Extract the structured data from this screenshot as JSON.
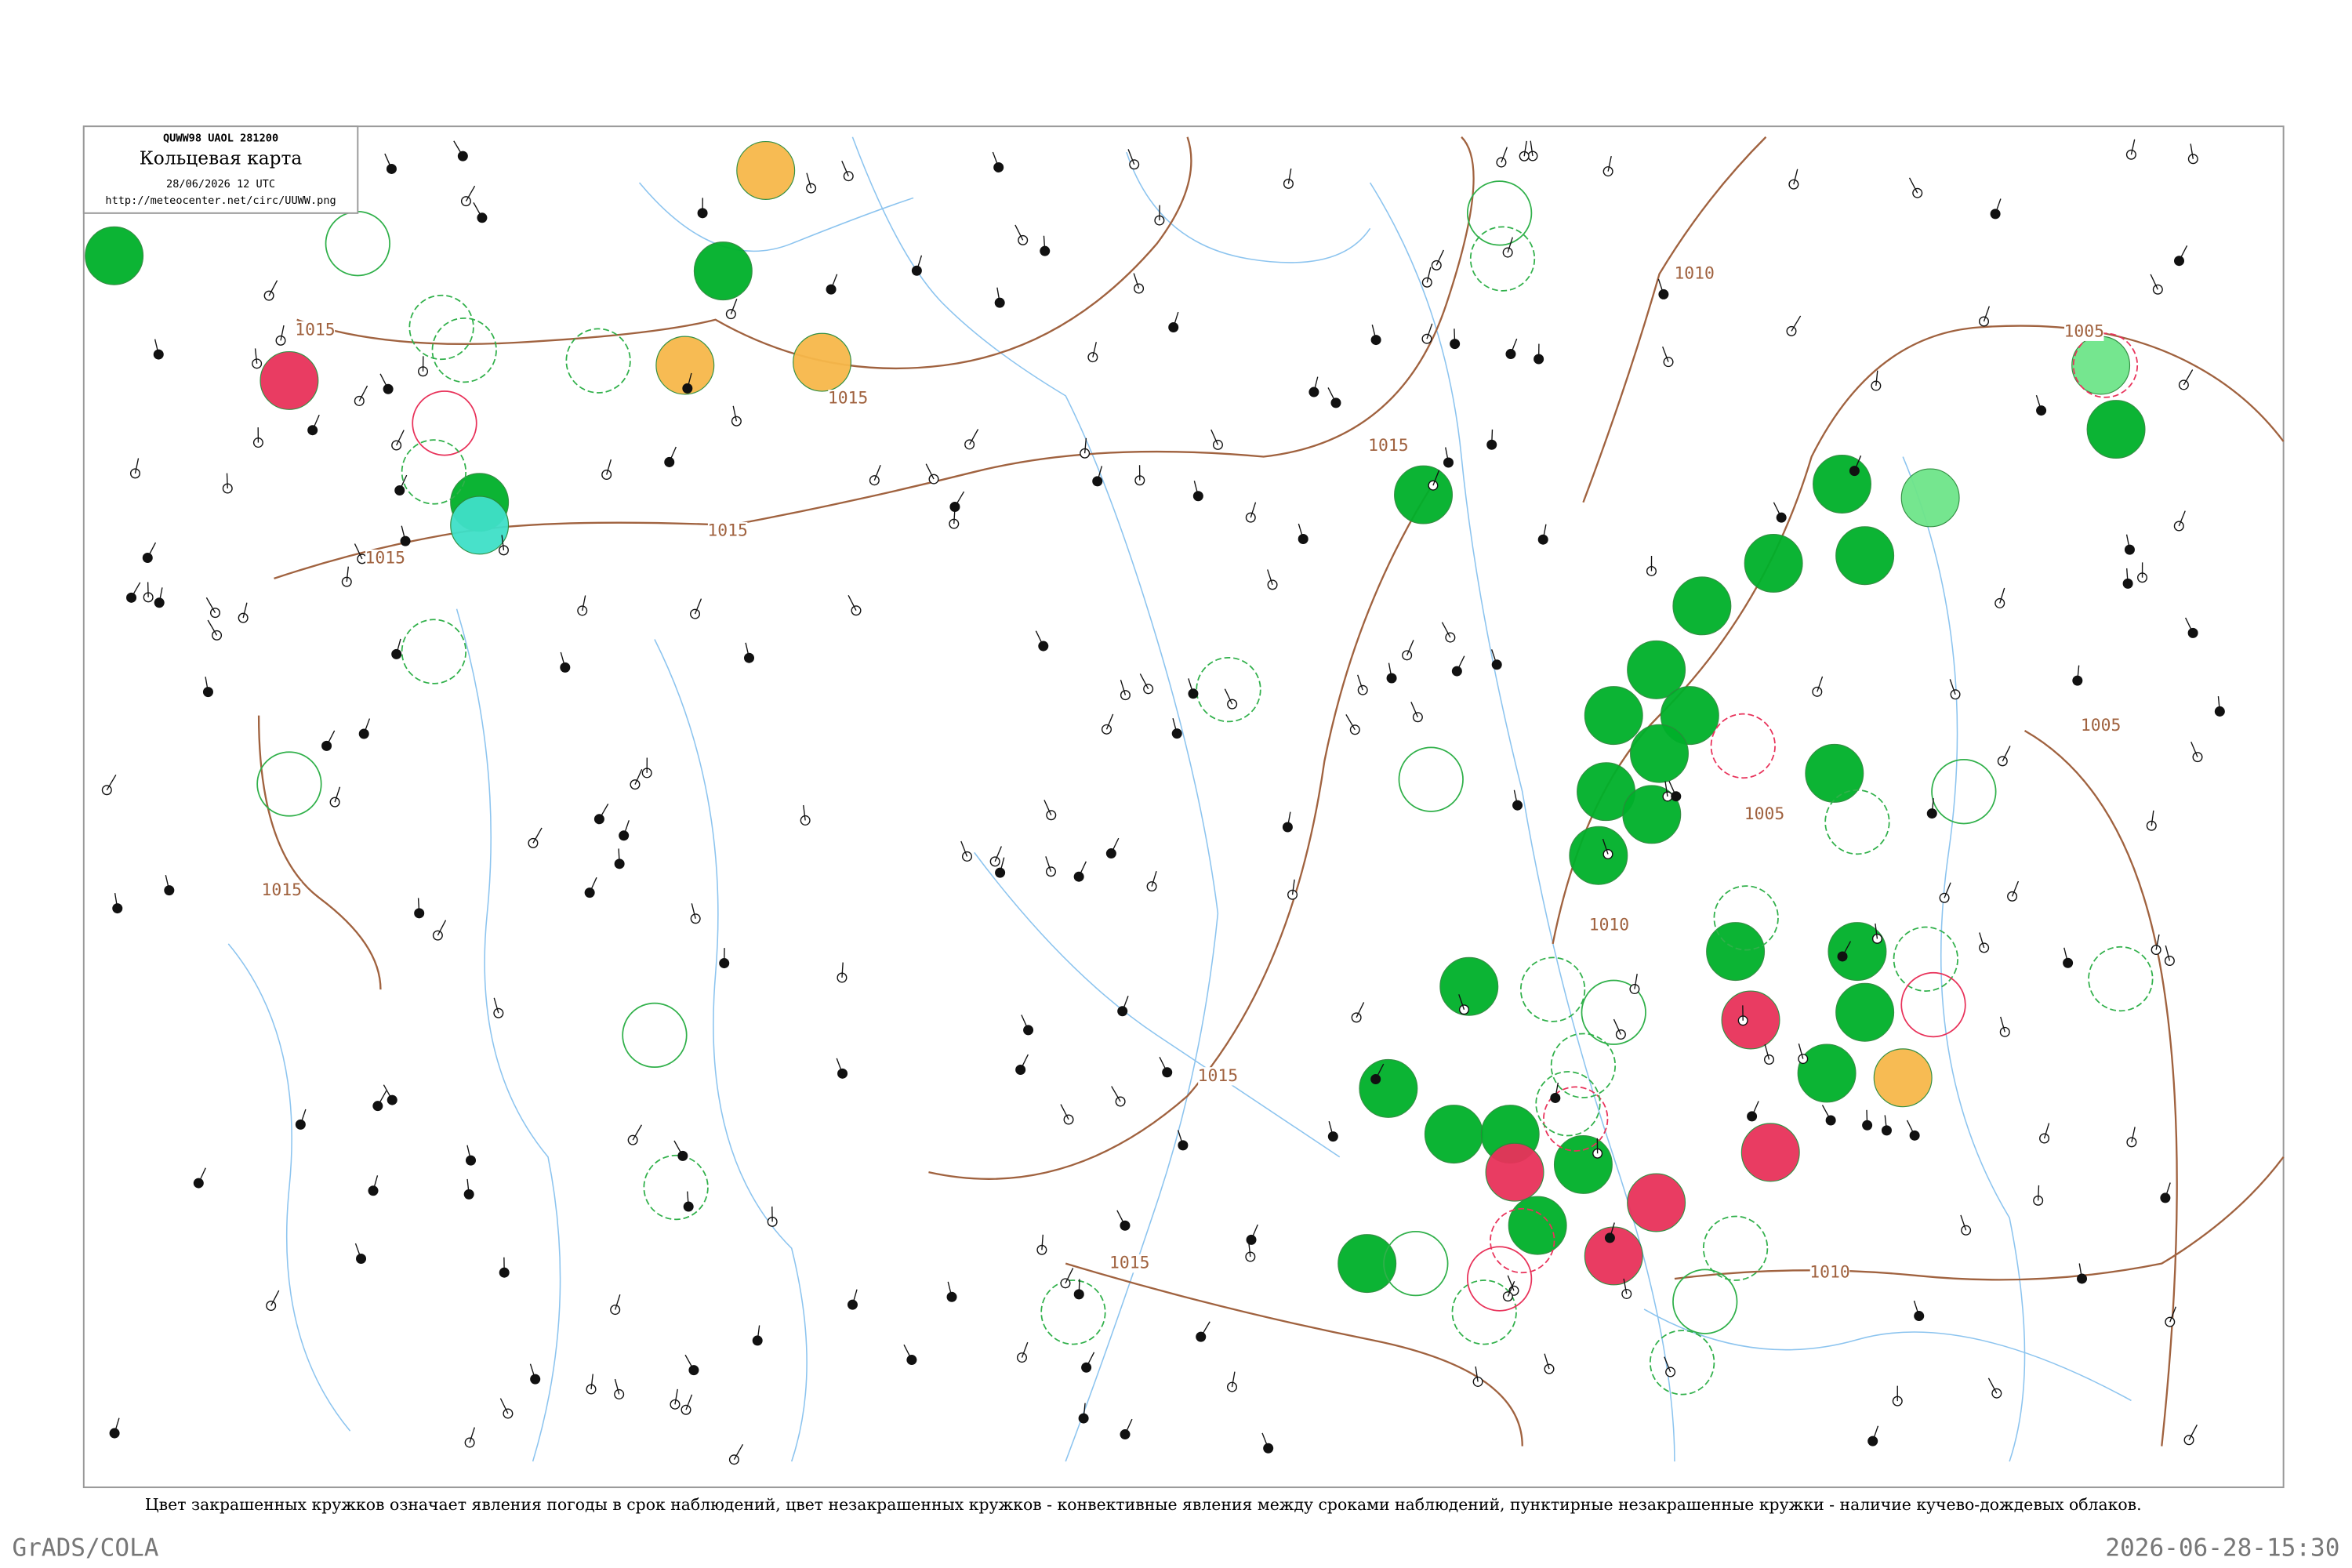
{
  "legend": {
    "code": "QUWW98  UAOL  281200",
    "title": "Кольцевая карта",
    "date": "28/06/2026 12 UTC",
    "url": "http://meteocenter.net/circ/UUWW.png"
  },
  "isobar_labels": [
    "1015",
    "1015",
    "1015",
    "1015",
    "1015",
    "1015",
    "1015",
    "1015",
    "1010",
    "1010",
    "1010",
    "1005",
    "1005",
    "1005"
  ],
  "caption": "Цвет закрашенных кружков означает явления погоды в срок наблюдений, цвет незакрашенных кружков - конвективные явления между сроками наблюдений, пунктирные незакрашенные кружки - наличие кучево-дождевых облаков.",
  "credits": "GrADS/COLA",
  "timestamp": "2026-06-28-15:30"
}
